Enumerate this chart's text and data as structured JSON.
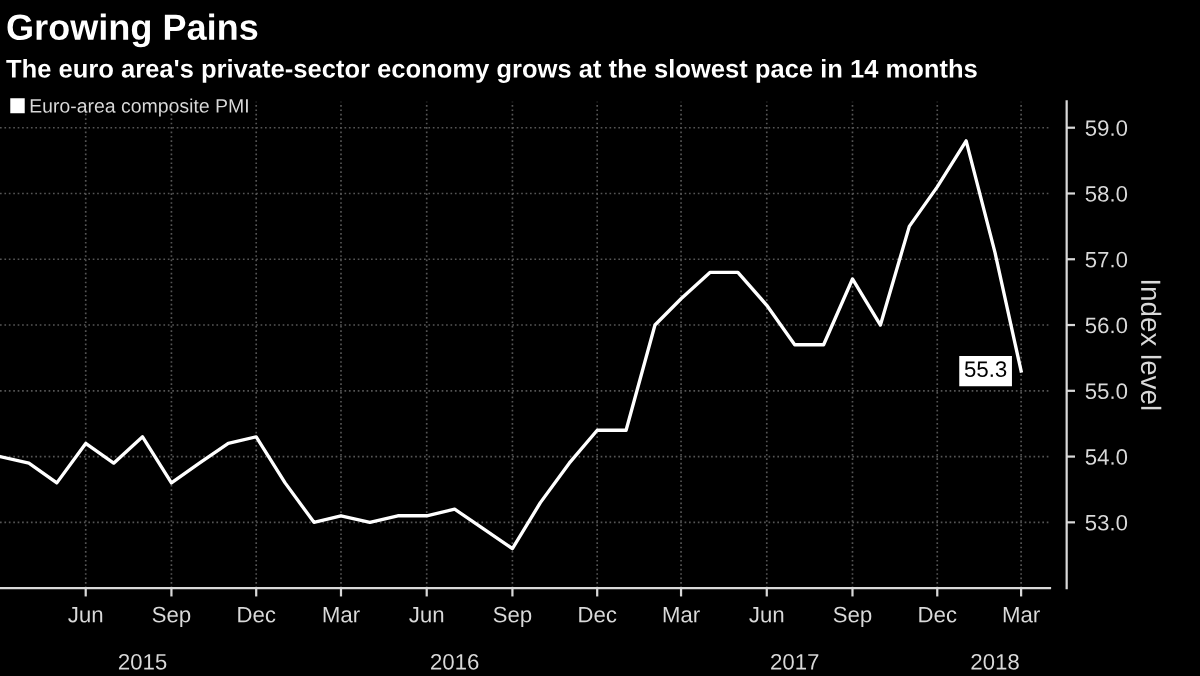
{
  "chart_data": {
    "type": "line",
    "title": "Growing Pains",
    "subtitle": "The euro area's private-sector economy grows at the slowest pace in 14 months",
    "ylabel": "Index level",
    "x": [
      "2015-03",
      "2015-04",
      "2015-05",
      "2015-06",
      "2015-07",
      "2015-08",
      "2015-09",
      "2015-10",
      "2015-11",
      "2015-12",
      "2016-01",
      "2016-02",
      "2016-03",
      "2016-04",
      "2016-05",
      "2016-06",
      "2016-07",
      "2016-08",
      "2016-09",
      "2016-10",
      "2016-11",
      "2016-12",
      "2017-01",
      "2017-02",
      "2017-03",
      "2017-04",
      "2017-05",
      "2017-06",
      "2017-07",
      "2017-08",
      "2017-09",
      "2017-10",
      "2017-11",
      "2017-12",
      "2018-01",
      "2018-02",
      "2018-03"
    ],
    "series": [
      {
        "name": "Euro-area composite PMI",
        "color": "#ffffff",
        "values": [
          54.0,
          53.9,
          53.6,
          54.2,
          53.9,
          54.3,
          53.6,
          53.9,
          54.2,
          54.3,
          53.6,
          53.0,
          53.1,
          53.0,
          53.1,
          53.1,
          53.2,
          52.9,
          52.6,
          53.3,
          53.9,
          54.4,
          54.4,
          56.0,
          56.4,
          56.8,
          56.8,
          56.3,
          55.7,
          55.7,
          56.7,
          56.0,
          57.5,
          58.1,
          58.8,
          57.1,
          55.3
        ],
        "value_labels": [
          null,
          null,
          null,
          null,
          null,
          null,
          null,
          null,
          null,
          null,
          null,
          null,
          null,
          null,
          null,
          null,
          null,
          null,
          null,
          null,
          null,
          null,
          null,
          null,
          null,
          null,
          null,
          null,
          null,
          null,
          null,
          null,
          null,
          null,
          null,
          null,
          "55.3"
        ]
      }
    ],
    "xlim": [
      "2015-03",
      "2018-04"
    ],
    "xticks": [
      {
        "value": "2015-06",
        "label": "Jun"
      },
      {
        "value": "2015-09",
        "label": "Sep"
      },
      {
        "value": "2015-12",
        "label": "Dec"
      },
      {
        "value": "2016-03",
        "label": "Mar"
      },
      {
        "value": "2016-06",
        "label": "Jun"
      },
      {
        "value": "2016-09",
        "label": "Sep"
      },
      {
        "value": "2016-12",
        "label": "Dec"
      },
      {
        "value": "2017-03",
        "label": "Mar"
      },
      {
        "value": "2017-06",
        "label": "Jun"
      },
      {
        "value": "2017-09",
        "label": "Sep"
      },
      {
        "value": "2017-12",
        "label": "Dec"
      },
      {
        "value": "2018-03",
        "label": "Mar"
      }
    ],
    "x2lim": [
      "2015-03",
      "2018-04"
    ],
    "x2ticks": [
      {
        "value": "2015-08",
        "label": "2015"
      },
      {
        "value": "2016-07",
        "label": "2016"
      },
      {
        "value": "2017-07",
        "label": "2017"
      },
      {
        "value": "2018-02",
        "label": "2018"
      }
    ],
    "ylim": [
      52.0,
      59.4
    ],
    "yticks": [
      {
        "value": 53,
        "label": "53.0"
      },
      {
        "value": 54,
        "label": "54.0"
      },
      {
        "value": 55,
        "label": "55.0"
      },
      {
        "value": 56,
        "label": "56.0"
      },
      {
        "value": 57,
        "label": "57.0"
      },
      {
        "value": 58,
        "label": "58.0"
      },
      {
        "value": 59,
        "label": "59.0"
      }
    ],
    "grid": true,
    "legend": "top left",
    "marker": "none",
    "line_style": "solid"
  }
}
